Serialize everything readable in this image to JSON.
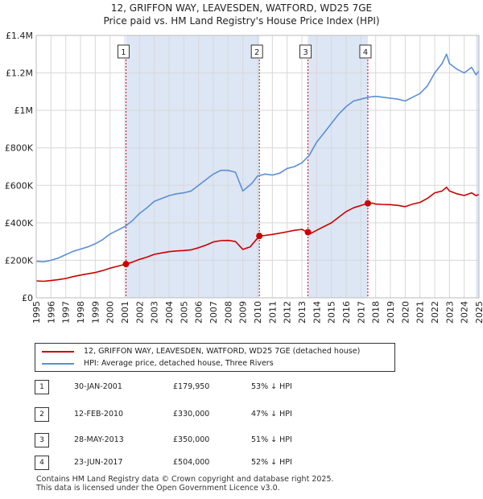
{
  "title": "12, GRIFFON WAY, LEAVESDEN, WATFORD, WD25 7GE",
  "subtitle": "Price paid vs. HM Land Registry's House Price Index (HPI)",
  "colors": {
    "property": "#cc0000",
    "hpi": "#5b8ed6",
    "shade": "#dde6f5",
    "grid": "#d8d8d8"
  },
  "chart_data": {
    "type": "line",
    "xlim": [
      1995,
      2025
    ],
    "ylim": [
      0,
      1400000
    ],
    "yticks": [
      0,
      200000,
      400000,
      600000,
      800000,
      1000000,
      1200000,
      1400000
    ],
    "ytick_labels": [
      "£0",
      "£200K",
      "£400K",
      "£600K",
      "£800K",
      "£1M",
      "£1.2M",
      "£1.4M"
    ],
    "xtick_labels": [
      "1995",
      "1996",
      "1997",
      "1998",
      "1999",
      "2000",
      "2001",
      "2002",
      "2003",
      "2004",
      "2005",
      "2006",
      "2007",
      "2008",
      "2009",
      "2010",
      "2011",
      "2012",
      "2013",
      "2014",
      "2015",
      "2016",
      "2017",
      "2018",
      "2019",
      "2020",
      "2021",
      "2022",
      "2023",
      "2024",
      "2025"
    ],
    "series": [
      {
        "name": "HPI",
        "x": [
          1995,
          1995.5,
          1996,
          1996.5,
          1997,
          1997.5,
          1998,
          1998.5,
          1999,
          1999.5,
          2000,
          2000.5,
          2001,
          2001.5,
          2002,
          2002.5,
          2003,
          2003.5,
          2004,
          2004.5,
          2005,
          2005.5,
          2006,
          2006.5,
          2007,
          2007.5,
          2008,
          2008.5,
          2009,
          2009.3,
          2009.6,
          2010,
          2010.5,
          2011,
          2011.5,
          2012,
          2012.5,
          2013,
          2013.5,
          2014,
          2014.5,
          2015,
          2015.5,
          2016,
          2016.5,
          2017,
          2017.5,
          2018,
          2018.5,
          2019,
          2019.5,
          2020,
          2020.5,
          2021,
          2021.5,
          2022,
          2022.5,
          2022.8,
          2023,
          2023.5,
          2024,
          2024.5,
          2024.8,
          2025
        ],
        "y": [
          195000,
          192000,
          200000,
          212000,
          230000,
          248000,
          260000,
          272000,
          288000,
          310000,
          340000,
          360000,
          380000,
          410000,
          450000,
          480000,
          515000,
          530000,
          545000,
          555000,
          560000,
          570000,
          600000,
          630000,
          660000,
          680000,
          680000,
          670000,
          570000,
          590000,
          610000,
          650000,
          660000,
          655000,
          665000,
          690000,
          700000,
          720000,
          760000,
          830000,
          880000,
          930000,
          980000,
          1020000,
          1050000,
          1060000,
          1070000,
          1075000,
          1070000,
          1065000,
          1060000,
          1050000,
          1070000,
          1090000,
          1130000,
          1200000,
          1250000,
          1300000,
          1250000,
          1220000,
          1200000,
          1230000,
          1190000,
          1210000
        ]
      },
      {
        "name": "12, GRIFFON WAY, LEAVESDEN, WATFORD, WD25 7GE (detached house)",
        "x": [
          1995,
          1995.5,
          1996,
          1996.5,
          1997,
          1997.5,
          1998,
          1998.5,
          1999,
          1999.5,
          2000,
          2000.5,
          2001.08,
          2001.5,
          2002,
          2002.5,
          2003,
          2003.5,
          2004,
          2004.5,
          2005,
          2005.5,
          2006,
          2006.5,
          2007,
          2007.5,
          2008,
          2008.5,
          2009,
          2009.5,
          2010.12,
          2010.5,
          2011,
          2011.5,
          2012,
          2012.5,
          2013,
          2013.4,
          2013.6,
          2014,
          2014.5,
          2015,
          2015.5,
          2016,
          2016.5,
          2017.47,
          2017.8,
          2018,
          2018.5,
          2019,
          2019.5,
          2020,
          2020.5,
          2021,
          2021.5,
          2022,
          2022.5,
          2022.8,
          2023,
          2023.5,
          2024,
          2024.5,
          2024.8,
          2025
        ],
        "y": [
          90000,
          88000,
          92000,
          97000,
          103000,
          113000,
          121000,
          128000,
          135000,
          145000,
          158000,
          168000,
          179950,
          190000,
          205000,
          217000,
          232000,
          239000,
          246000,
          250000,
          252000,
          256000,
          267000,
          281000,
          298000,
          305000,
          306000,
          300000,
          258000,
          272000,
          330000,
          333000,
          338000,
          345000,
          352000,
          360000,
          365000,
          350000,
          343000,
          360000,
          380000,
          400000,
          430000,
          460000,
          480000,
          504000,
          505000,
          500000,
          498000,
          497000,
          493000,
          486000,
          500000,
          509000,
          530000,
          560000,
          570000,
          590000,
          570000,
          555000,
          546000,
          560000,
          545000,
          552000
        ]
      }
    ],
    "sales": [
      {
        "n": "1",
        "x": 2001.08,
        "y": 179950
      },
      {
        "n": "2",
        "x": 2010.12,
        "y": 330000
      },
      {
        "n": "3",
        "x": 2013.41,
        "y": 350000
      },
      {
        "n": "4",
        "x": 2017.47,
        "y": 504000
      }
    ],
    "shaded_spans": [
      [
        2001.08,
        2010.12
      ],
      [
        2013.41,
        2017.47
      ],
      [
        2024.8,
        2025
      ]
    ]
  },
  "legend": {
    "property": "12, GRIFFON WAY, LEAVESDEN, WATFORD, WD25 7GE (detached house)",
    "hpi": "HPI: Average price, detached house, Three Rivers"
  },
  "sales_table": [
    {
      "num": "1",
      "date": "30-JAN-2001",
      "price": "£179,950",
      "hpi": "53% ↓ HPI"
    },
    {
      "num": "2",
      "date": "12-FEB-2010",
      "price": "£330,000",
      "hpi": "47% ↓ HPI"
    },
    {
      "num": "3",
      "date": "28-MAY-2013",
      "price": "£350,000",
      "hpi": "51% ↓ HPI"
    },
    {
      "num": "4",
      "date": "23-JUN-2017",
      "price": "£504,000",
      "hpi": "52% ↓ HPI"
    }
  ],
  "footer": {
    "line1": "Contains HM Land Registry data © Crown copyright and database right 2025.",
    "line2": "This data is licensed under the Open Government Licence v3.0."
  }
}
